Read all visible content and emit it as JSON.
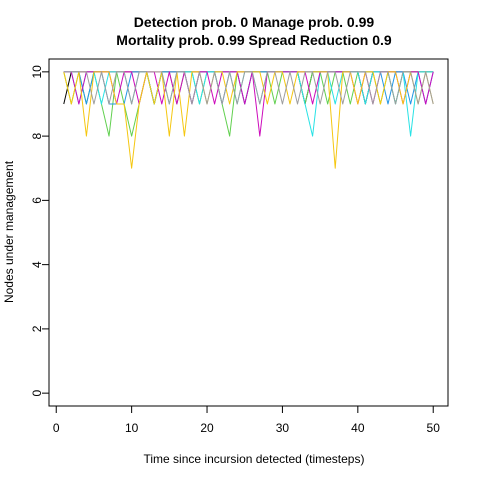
{
  "chart_data": {
    "type": "line",
    "title_line1": "Detection prob. 0 Manage prob. 0.99",
    "title_line2": "Mortality prob. 0.99 Spread Reduction 0.9",
    "xlabel": "Time since incursion detected (timesteps)",
    "ylabel": "Nodes under management",
    "xlim": [
      0,
      50
    ],
    "ylim": [
      0,
      10
    ],
    "xticks": [
      0,
      10,
      20,
      30,
      40,
      50
    ],
    "yticks": [
      0,
      2,
      4,
      6,
      8,
      10
    ],
    "grid": false,
    "legend": "none",
    "series": [
      {
        "color": "#000000",
        "values": [
          9,
          10,
          10,
          10,
          10,
          10,
          10,
          10,
          10,
          10,
          10,
          10,
          9,
          10,
          10,
          10,
          10,
          10,
          10,
          10,
          10,
          10,
          10,
          10,
          10,
          10,
          10,
          10,
          10,
          10,
          10,
          10,
          9,
          10,
          10,
          10,
          10,
          10,
          10,
          10,
          9,
          10,
          10,
          10,
          10,
          10,
          10,
          10,
          10,
          10
        ]
      },
      {
        "color": "#DF536B",
        "values": [
          10,
          10,
          10,
          10,
          10,
          10,
          10,
          10,
          10,
          10,
          10,
          10,
          10,
          10,
          10,
          10,
          10,
          10,
          10,
          10,
          10,
          10,
          10,
          10,
          10,
          10,
          10,
          10,
          10,
          10,
          10,
          10,
          10,
          10,
          10,
          10,
          10,
          10,
          10,
          10,
          10,
          10,
          10,
          10,
          10,
          10,
          10,
          10,
          10,
          10
        ]
      },
      {
        "color": "#61D04F",
        "values": [
          10,
          9,
          10,
          9,
          10,
          9,
          8,
          10,
          9,
          8,
          9,
          10,
          9,
          10,
          10,
          9,
          10,
          10,
          9,
          10,
          10,
          9,
          8,
          10,
          9,
          10,
          10,
          10,
          9,
          10,
          10,
          10,
          9,
          10,
          10,
          9,
          10,
          10,
          9,
          10,
          10,
          10,
          9,
          10,
          9,
          10,
          10,
          10,
          10,
          10
        ]
      },
      {
        "color": "#2297E6",
        "values": [
          10,
          10,
          10,
          9,
          10,
          10,
          9,
          9,
          9,
          10,
          10,
          10,
          9,
          10,
          10,
          10,
          10,
          9,
          10,
          10,
          10,
          9,
          10,
          10,
          9,
          10,
          10,
          10,
          10,
          10,
          10,
          10,
          10,
          10,
          10,
          10,
          10,
          10,
          10,
          10,
          10,
          10,
          10,
          9,
          10,
          10,
          9,
          10,
          9,
          10
        ]
      },
      {
        "color": "#28E2E5",
        "values": [
          10,
          10,
          9,
          10,
          10,
          9,
          10,
          10,
          10,
          9,
          10,
          10,
          9,
          10,
          9,
          10,
          10,
          10,
          9,
          10,
          10,
          10,
          10,
          9,
          10,
          10,
          9,
          10,
          10,
          10,
          10,
          10,
          9,
          8,
          10,
          10,
          9,
          10,
          10,
          10,
          9,
          10,
          10,
          10,
          9,
          10,
          8,
          10,
          10,
          10
        ]
      },
      {
        "color": "#CD0BBC",
        "values": [
          10,
          10,
          9,
          10,
          10,
          10,
          10,
          9,
          10,
          10,
          9,
          10,
          10,
          9,
          10,
          9,
          10,
          9,
          10,
          10,
          9,
          10,
          10,
          10,
          9,
          10,
          8,
          10,
          10,
          10,
          10,
          10,
          10,
          9,
          10,
          10,
          10,
          10,
          10,
          9,
          10,
          9,
          10,
          10,
          10,
          9,
          10,
          10,
          9,
          10
        ]
      },
      {
        "color": "#F5C710",
        "values": [
          10,
          9,
          10,
          8,
          10,
          10,
          10,
          9,
          9,
          7,
          9,
          10,
          9,
          10,
          8,
          10,
          8,
          10,
          10,
          9,
          10,
          10,
          9,
          10,
          10,
          10,
          10,
          9,
          10,
          10,
          9,
          10,
          10,
          10,
          10,
          10,
          7,
          10,
          10,
          9,
          10,
          10,
          9,
          10,
          10,
          9,
          10,
          9,
          10,
          9
        ]
      },
      {
        "color": "#9E9E9E",
        "values": [
          10,
          10,
          10,
          10,
          9,
          10,
          9,
          10,
          10,
          9,
          10,
          10,
          10,
          10,
          9,
          10,
          10,
          9,
          10,
          9,
          10,
          9,
          10,
          9,
          10,
          10,
          9,
          10,
          10,
          9,
          10,
          9,
          10,
          10,
          9,
          10,
          10,
          9,
          10,
          10,
          10,
          9,
          10,
          10,
          9,
          10,
          10,
          9,
          10,
          9
        ]
      }
    ]
  }
}
